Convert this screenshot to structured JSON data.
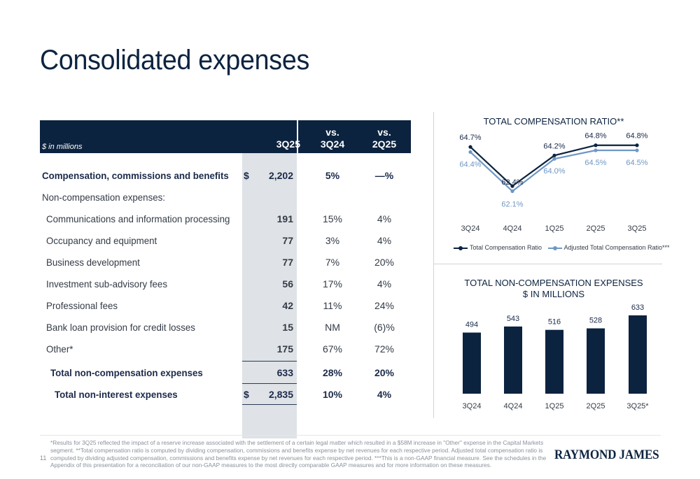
{
  "title": "Consolidated expenses",
  "table": {
    "units": "$ in millions",
    "columns": [
      "3Q25",
      "vs.\n3Q24",
      "vs.\n2Q25"
    ],
    "rows": [
      {
        "label": "Compensation, commissions and benefits",
        "indent": 0,
        "bold": true,
        "dollar": "$",
        "value": "2,202",
        "vs_3q24": "5%",
        "vs_2q25": "—%"
      },
      {
        "label": "Non-compensation expenses:",
        "indent": 0,
        "bold": false,
        "dollar": "",
        "value": "",
        "vs_3q24": "",
        "vs_2q25": ""
      },
      {
        "label": "Communications and information processing",
        "indent": 1,
        "bold": false,
        "dollar": "",
        "value": "191",
        "vs_3q24": "15%",
        "vs_2q25": "4%"
      },
      {
        "label": "Occupancy and equipment",
        "indent": 1,
        "bold": false,
        "dollar": "",
        "value": "77",
        "vs_3q24": "3%",
        "vs_2q25": "4%"
      },
      {
        "label": "Business development",
        "indent": 1,
        "bold": false,
        "dollar": "",
        "value": "77",
        "vs_3q24": "7%",
        "vs_2q25": "20%"
      },
      {
        "label": "Investment sub-advisory fees",
        "indent": 1,
        "bold": false,
        "dollar": "",
        "value": "56",
        "vs_3q24": "17%",
        "vs_2q25": "4%"
      },
      {
        "label": "Professional fees",
        "indent": 1,
        "bold": false,
        "dollar": "",
        "value": "42",
        "vs_3q24": "11%",
        "vs_2q25": "24%"
      },
      {
        "label": "Bank loan provision for credit losses",
        "indent": 1,
        "bold": false,
        "dollar": "",
        "value": "15",
        "vs_3q24": "NM",
        "vs_2q25": "(6)%"
      },
      {
        "label": "Other*",
        "indent": 1,
        "bold": false,
        "dollar": "",
        "value": "175",
        "vs_3q24": "67%",
        "vs_2q25": "72%"
      },
      {
        "label": "Total non-compensation expenses",
        "indent": 2,
        "bold": true,
        "dollar": "",
        "value": "633",
        "vs_3q24": "28%",
        "vs_2q25": "20%"
      },
      {
        "label": "Total non-interest expenses",
        "indent": 3,
        "bold": true,
        "dollar": "$",
        "value": "2,835",
        "vs_3q24": "10%",
        "vs_2q25": "4%"
      }
    ]
  },
  "chart_data": [
    {
      "type": "line",
      "title": "TOTAL COMPENSATION RATIO**",
      "categories": [
        "3Q24",
        "4Q24",
        "1Q25",
        "2Q25",
        "3Q25"
      ],
      "series": [
        {
          "name": "Total Compensation Ratio",
          "values": [
            64.7,
            62.4,
            64.2,
            64.8,
            64.8
          ],
          "labels": [
            "64.7%",
            "62.4%",
            "64.2%",
            "64.8%",
            "64.8%"
          ],
          "color": "#0c2340"
        },
        {
          "name": "Adjusted Total Compensation Ratio***",
          "values": [
            64.4,
            62.1,
            64.0,
            64.5,
            64.5
          ],
          "labels": [
            "64.4%",
            "62.1%",
            "64.0%",
            "64.5%",
            "64.5%"
          ],
          "color": "#6f97c4"
        }
      ],
      "ylim": [
        61.5,
        65.2
      ],
      "legend": "bottom",
      "grid": false
    },
    {
      "type": "bar",
      "title": "TOTAL NON-COMPENSATION EXPENSES\n$ IN MILLIONS",
      "categories": [
        "3Q24",
        "4Q24",
        "1Q25",
        "2Q25",
        "3Q25*"
      ],
      "values": [
        494,
        543,
        516,
        528,
        633
      ],
      "color": "#0c2340",
      "ylim": [
        0,
        633
      ],
      "grid": false
    }
  ],
  "footer": {
    "page_number": "11",
    "footnote": "*Results for 3Q25 reflected the impact of a reserve increase associated with the settlement of a certain legal matter which resulted in a $58M increase in \"Other\" expense in the Capital Markets segment. **Total compensation ratio is computed by dividing compensation, commissions and benefits expense by net revenues for each respective period. Adjusted total compensation ratio is computed by dividing adjusted compensation, commissions and benefits expense by net revenues for each respective period. ***This is a non-GAAP financial measure. See the schedules in the Appendix of this presentation for a reconciliation of our non-GAAP measures to the most directly comparable GAAP measures and for more information on these measures.",
    "logo_text": "RAYMOND JAMES"
  }
}
